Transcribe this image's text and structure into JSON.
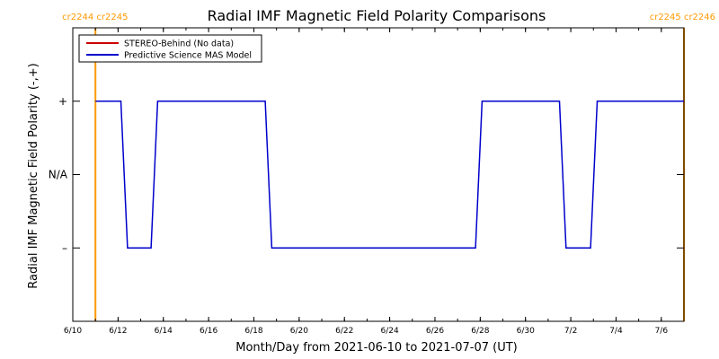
{
  "chart_data": {
    "type": "line",
    "title": "Radial IMF Magnetic Field Polarity Comparisons",
    "xlabel": "Month/Day from 2021-06-10 to 2021-07-07 (UT)",
    "ylabel": "Radial IMF Magnetic Field Polarity (-,+)",
    "xlim": [
      "2021-06-10",
      "2021-07-07"
    ],
    "ylim": [
      -2,
      2
    ],
    "x_ticks": [
      {
        "date": "2021-06-10",
        "label": "6/10"
      },
      {
        "date": "2021-06-12",
        "label": "6/12"
      },
      {
        "date": "2021-06-14",
        "label": "6/14"
      },
      {
        "date": "2021-06-16",
        "label": "6/16"
      },
      {
        "date": "2021-06-18",
        "label": "6/18"
      },
      {
        "date": "2021-06-20",
        "label": "6/20"
      },
      {
        "date": "2021-06-22",
        "label": "6/22"
      },
      {
        "date": "2021-06-24",
        "label": "6/24"
      },
      {
        "date": "2021-06-26",
        "label": "6/26"
      },
      {
        "date": "2021-06-28",
        "label": "6/28"
      },
      {
        "date": "2021-06-30",
        "label": "6/30"
      },
      {
        "date": "2021-07-02",
        "label": "7/2"
      },
      {
        "date": "2021-07-04",
        "label": "7/4"
      },
      {
        "date": "2021-07-06",
        "label": "7/6"
      }
    ],
    "y_ticks": [
      {
        "value": 1,
        "label": "+"
      },
      {
        "value": 0,
        "label": "N/A"
      },
      {
        "value": -1,
        "label": "–"
      }
    ],
    "legend_position": "top-left",
    "series": [
      {
        "name": "STEREO-Behind (No data)",
        "color": "#cc0000",
        "points": []
      },
      {
        "name": "Predictive Science MAS Model",
        "color": "#0000cc",
        "points": [
          {
            "x": "2021-06-11T00:00",
            "y": 1
          },
          {
            "x": "2021-06-12T03:00",
            "y": 1
          },
          {
            "x": "2021-06-12T10:00",
            "y": -1
          },
          {
            "x": "2021-06-13T11:00",
            "y": -1
          },
          {
            "x": "2021-06-13T18:00",
            "y": 1
          },
          {
            "x": "2021-06-18T12:00",
            "y": 1
          },
          {
            "x": "2021-06-18T19:00",
            "y": -1
          },
          {
            "x": "2021-06-27T19:00",
            "y": -1
          },
          {
            "x": "2021-06-28T02:00",
            "y": 1
          },
          {
            "x": "2021-07-01T12:00",
            "y": 1
          },
          {
            "x": "2021-07-01T19:00",
            "y": -1
          },
          {
            "x": "2021-07-02T21:00",
            "y": -1
          },
          {
            "x": "2021-07-03T04:00",
            "y": 1
          },
          {
            "x": "2021-07-07T00:00",
            "y": 1
          }
        ]
      }
    ],
    "carrington_markers": [
      {
        "date": "2021-06-11T00:00",
        "label": "cr2244 cr2245",
        "color": "#ff9900"
      },
      {
        "date": "2021-07-07T00:00",
        "label": "cr2245 cr2246",
        "color": "#ff9900"
      }
    ]
  }
}
